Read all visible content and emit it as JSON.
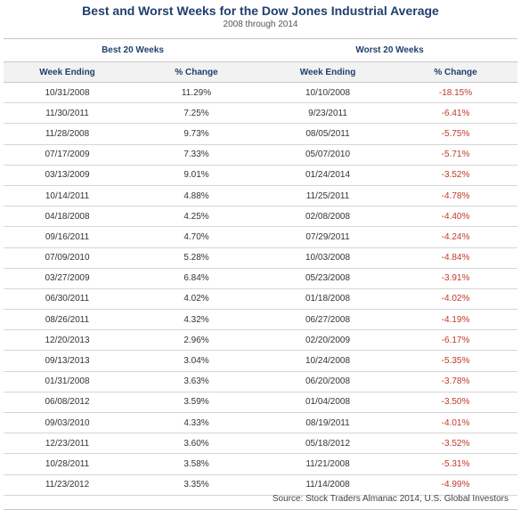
{
  "title": "Best and Worst Weeks for the Dow Jones Industrial Average",
  "subtitle": "2008 through 2014",
  "groups": {
    "best": "Best 20 Weeks",
    "worst": "Worst 20 Weeks"
  },
  "columns": {
    "week_ending": "Week Ending",
    "pct_change": "% Change"
  },
  "rows": [
    {
      "best_week": "10/31/2008",
      "best_change": "11.29%",
      "worst_week": "10/10/2008",
      "worst_change": "-18.15%"
    },
    {
      "best_week": "11/30/2011",
      "best_change": "7.25%",
      "worst_week": "9/23/2011",
      "worst_change": "-6.41%"
    },
    {
      "best_week": "11/28/2008",
      "best_change": "9.73%",
      "worst_week": "08/05/2011",
      "worst_change": "-5.75%"
    },
    {
      "best_week": "07/17/2009",
      "best_change": "7.33%",
      "worst_week": "05/07/2010",
      "worst_change": "-5.71%"
    },
    {
      "best_week": "03/13/2009",
      "best_change": "9.01%",
      "worst_week": "01/24/2014",
      "worst_change": "-3.52%"
    },
    {
      "best_week": "10/14/2011",
      "best_change": "4.88%",
      "worst_week": "11/25/2011",
      "worst_change": "-4.78%"
    },
    {
      "best_week": "04/18/2008",
      "best_change": "4.25%",
      "worst_week": "02/08/2008",
      "worst_change": "-4.40%"
    },
    {
      "best_week": "09/16/2011",
      "best_change": "4.70%",
      "worst_week": "07/29/2011",
      "worst_change": "-4.24%"
    },
    {
      "best_week": "07/09/2010",
      "best_change": "5.28%",
      "worst_week": "10/03/2008",
      "worst_change": "-4.84%"
    },
    {
      "best_week": "03/27/2009",
      "best_change": "6.84%",
      "worst_week": "05/23/2008",
      "worst_change": "-3.91%"
    },
    {
      "best_week": "06/30/2011",
      "best_change": "4.02%",
      "worst_week": "01/18/2008",
      "worst_change": "-4.02%"
    },
    {
      "best_week": "08/26/2011",
      "best_change": "4.32%",
      "worst_week": "06/27/2008",
      "worst_change": "-4.19%"
    },
    {
      "best_week": "12/20/2013",
      "best_change": "2.96%",
      "worst_week": "02/20/2009",
      "worst_change": "-6.17%"
    },
    {
      "best_week": "09/13/2013",
      "best_change": "3.04%",
      "worst_week": "10/24/2008",
      "worst_change": "-5.35%"
    },
    {
      "best_week": "01/31/2008",
      "best_change": "3.63%",
      "worst_week": "06/20/2008",
      "worst_change": "-3.78%"
    },
    {
      "best_week": "06/08/2012",
      "best_change": "3.59%",
      "worst_week": "01/04/2008",
      "worst_change": "-3.50%"
    },
    {
      "best_week": "09/03/2010",
      "best_change": "4.33%",
      "worst_week": "08/19/2011",
      "worst_change": "-4.01%"
    },
    {
      "best_week": "12/23/2011",
      "best_change": "3.60%",
      "worst_week": "05/18/2012",
      "worst_change": "-3.52%"
    },
    {
      "best_week": "10/28/2011",
      "best_change": "3.58%",
      "worst_week": "11/21/2008",
      "worst_change": "-5.31%"
    },
    {
      "best_week": "11/23/2012",
      "best_change": "3.35%",
      "worst_week": "11/14/2008",
      "worst_change": "-4.99%"
    }
  ],
  "source": "Source: Stock Traders Almanac 2014, U.S. Global Investors",
  "colors": {
    "title": "#1f3f6e",
    "negative": "#c0392b"
  }
}
